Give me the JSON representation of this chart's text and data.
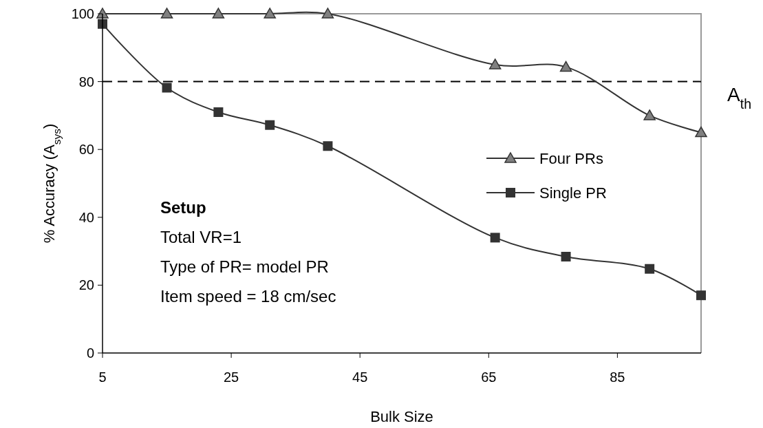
{
  "chart_data": {
    "type": "line",
    "xlabel": "Bulk Size",
    "ylabel": "% Accuracy (A$_{sys}$)",
    "xlim": [
      5,
      98
    ],
    "xticks": [
      5,
      25,
      45,
      65,
      85
    ],
    "ylim": [
      0,
      100
    ],
    "yticks": [
      0,
      20,
      40,
      60,
      80,
      100
    ],
    "series": [
      {
        "name": "Four PRs",
        "color": "#808080",
        "marker": "triangle",
        "x": [
          5,
          15,
          23,
          31,
          40,
          66,
          77,
          90,
          98
        ],
        "values": [
          100,
          100,
          100,
          100,
          100,
          85,
          84.3,
          70,
          65
        ]
      },
      {
        "name": "Single PR",
        "color": "#333333",
        "marker": "square",
        "x": [
          5,
          15,
          23,
          31,
          40,
          66,
          77,
          90,
          98
        ],
        "values": [
          97,
          78.2,
          71,
          67.2,
          61,
          34,
          28.4,
          24.8,
          17
        ]
      }
    ],
    "ref_lines": [
      {
        "axis": "y",
        "value": 80,
        "label": "A$_{th}$",
        "line_style": "dashed",
        "color": "#000000"
      }
    ],
    "annotations": [
      "Setup",
      "Total VR=1",
      "Type of PR= model PR",
      "Item speed = 18 cm/sec"
    ],
    "legend": "right",
    "grid": false
  }
}
